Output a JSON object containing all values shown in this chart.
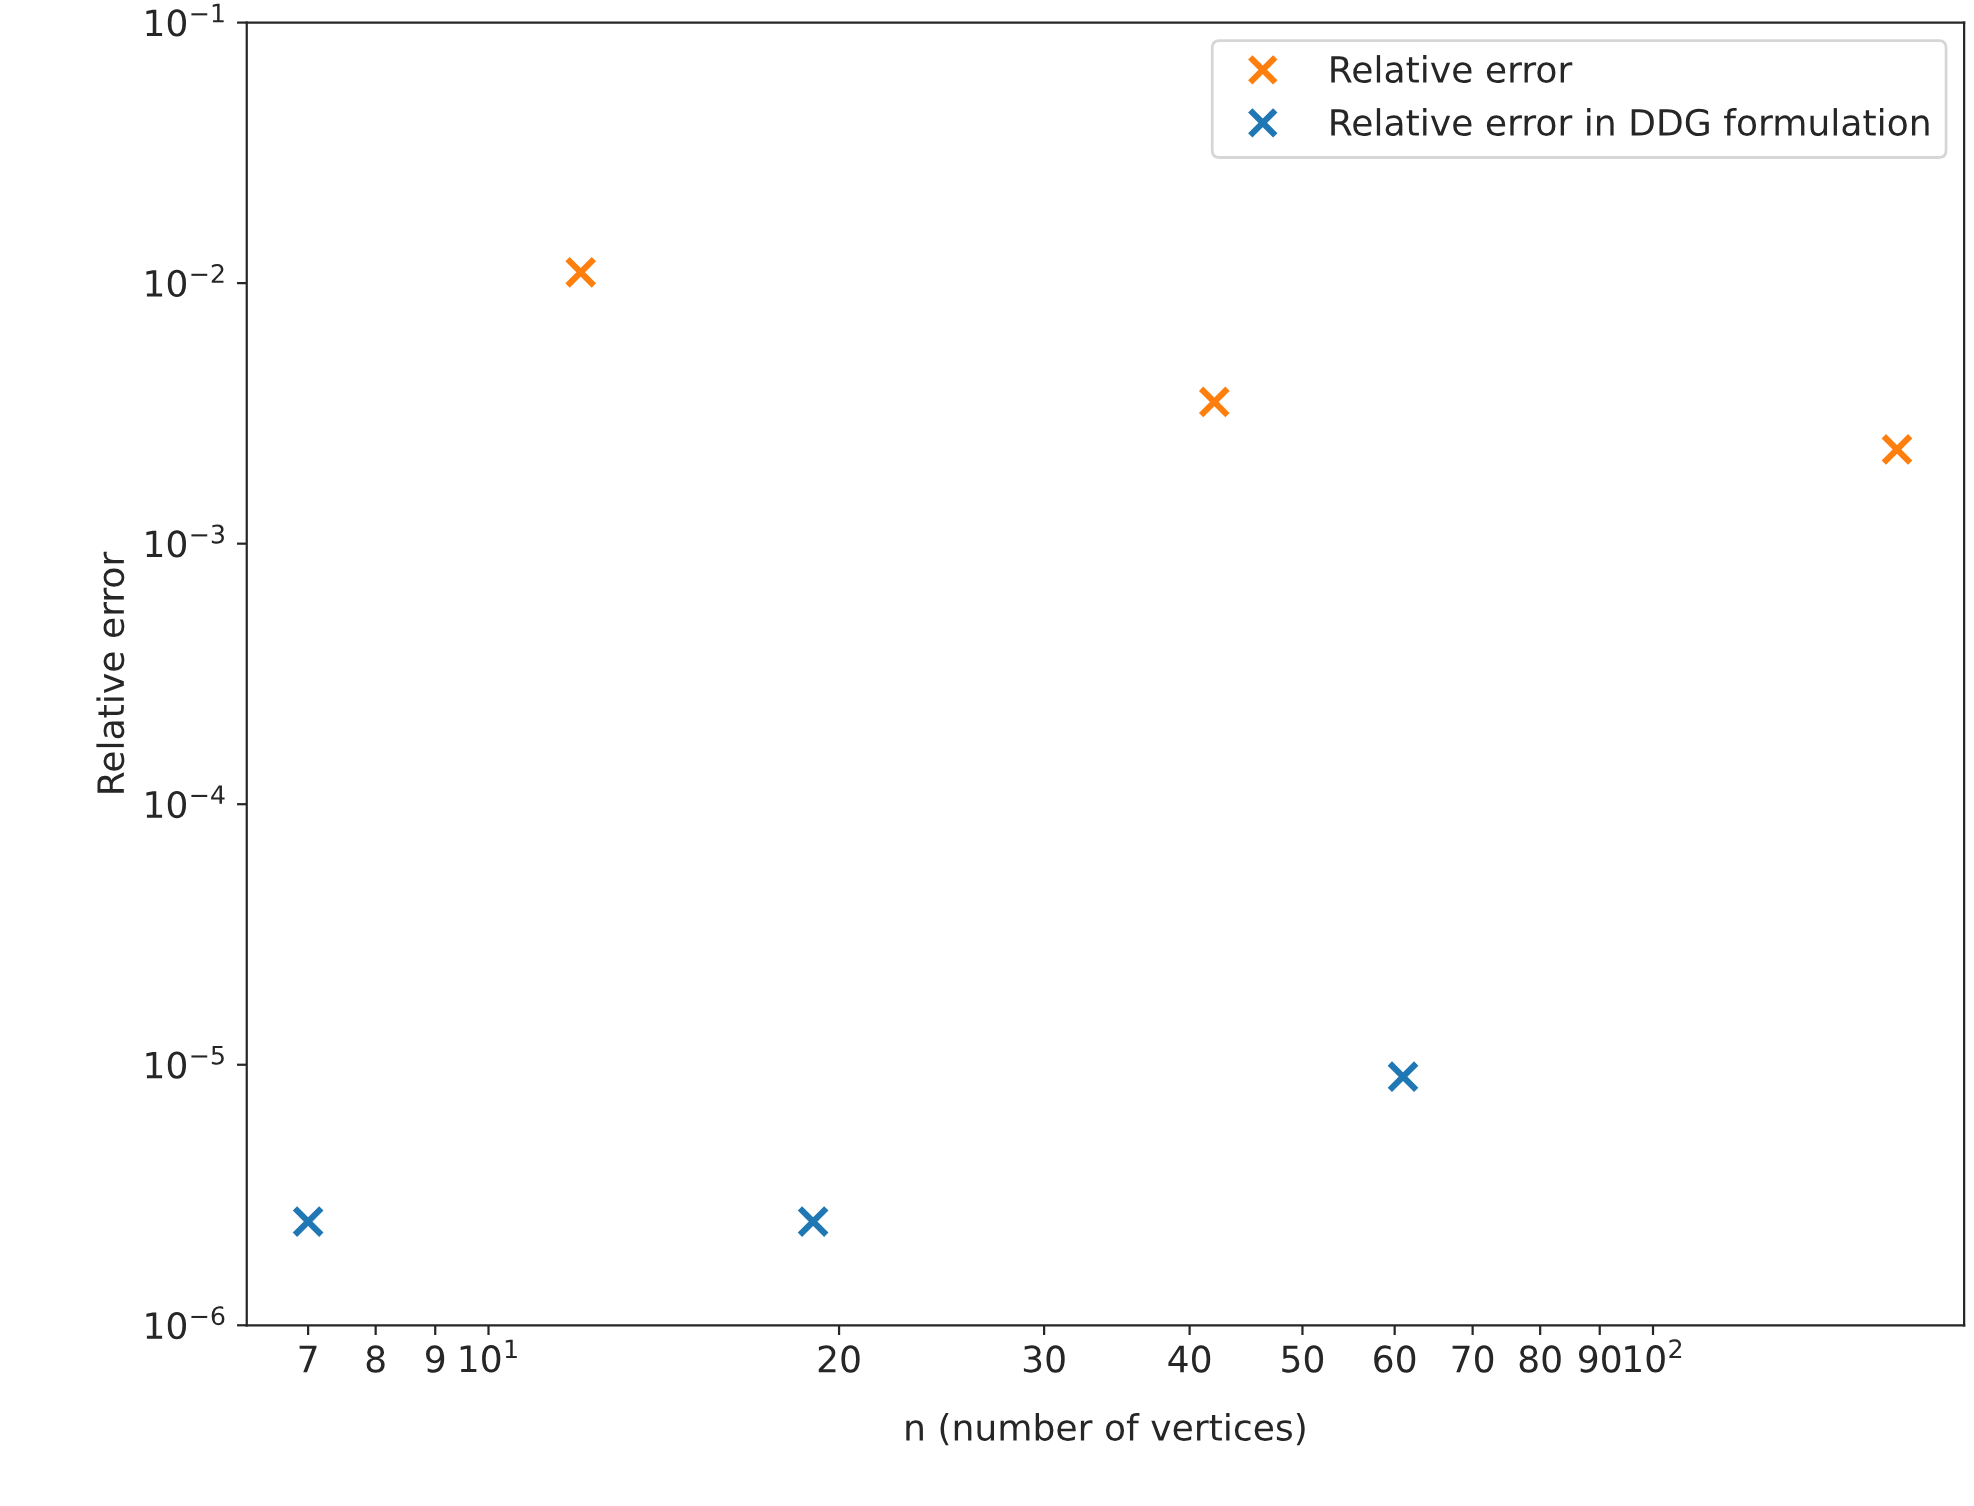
{
  "chart_data": {
    "type": "scatter",
    "xlabel": "n (number of vertices)",
    "ylabel": "Relative error",
    "log": "xy",
    "grid": false,
    "legend": "top right",
    "marker": "cross",
    "xlim": [
      6.2,
      185
    ],
    "xticks": [
      7,
      8,
      9,
      {
        "value": 10,
        "label": "10$^{1}$"
      },
      20,
      30,
      40,
      50,
      60,
      70,
      80,
      90,
      {
        "value": 100,
        "label": "10$^{2}$"
      }
    ],
    "ylim": [
      1e-06,
      0.1
    ],
    "yticks": [
      {
        "value": 1e-06,
        "label": "10$^{−6}$"
      },
      {
        "value": 1e-05,
        "label": "10$^{−5}$"
      },
      {
        "value": 0.0001,
        "label": "10$^{−4}$"
      },
      {
        "value": 0.001,
        "label": "10$^{−3}$"
      },
      {
        "value": 0.01,
        "label": "10$^{−2}$"
      },
      {
        "value": 0.1,
        "label": "10$^{−1}$"
      }
    ],
    "series": [
      {
        "name": "Relative error",
        "color": "#ff7f0e",
        "x": [
          12,
          42,
          162
        ],
        "values": [
          0.011,
          0.0035,
          0.0023
        ]
      },
      {
        "name": "Relative error in DDG formulation",
        "color": "#1f77b4",
        "x": [
          7,
          19,
          61
        ],
        "values": [
          2.5e-06,
          2.5e-06,
          9e-06
        ]
      }
    ]
  }
}
